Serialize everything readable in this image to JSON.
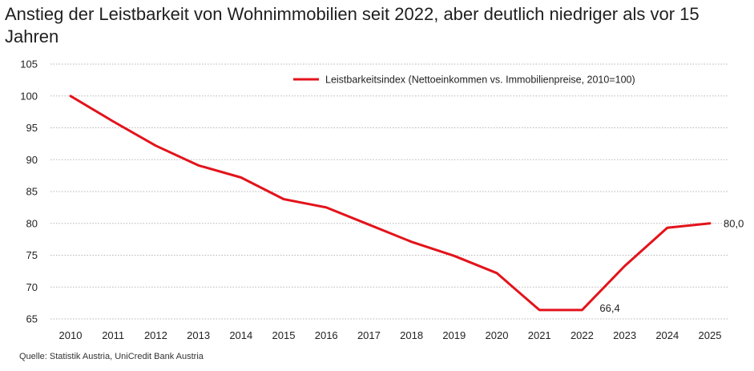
{
  "title": "Anstieg der Leistbarkeit von Wohnimmobilien seit 2022, aber deutlich niedriger als vor 15 Jahren",
  "source": "Quelle: Statistik Austria, UniCredit Bank Austria",
  "chart_data": {
    "type": "line",
    "title": "Anstieg der Leistbarkeit von Wohnimmobilien seit 2022, aber deutlich niedriger als vor 15 Jahren",
    "xlabel": "",
    "ylabel": "",
    "categories": [
      "2010",
      "2011",
      "2012",
      "2013",
      "2014",
      "2015",
      "2016",
      "2017",
      "2018",
      "2019",
      "2020",
      "2021",
      "2022",
      "2023",
      "2024",
      "2025"
    ],
    "series": [
      {
        "name": "Leistbarkeitsindex (Nettoeinkommen vs. Immobilienpreise, 2010=100)",
        "color": "#e3131b",
        "values": [
          100.0,
          96.0,
          92.2,
          89.1,
          87.2,
          83.8,
          82.5,
          79.8,
          77.1,
          74.9,
          72.2,
          66.4,
          66.4,
          73.3,
          79.3,
          80.0
        ]
      }
    ],
    "data_labels": [
      {
        "category": "2022",
        "text": "66,4"
      },
      {
        "category": "2025",
        "text": "80,0"
      }
    ],
    "y_ticks": [
      65,
      70,
      75,
      80,
      85,
      90,
      95,
      100,
      105
    ],
    "ylim": [
      65,
      105
    ],
    "grid": true,
    "gridline_style": "dotted",
    "legend_position": "top-right"
  }
}
